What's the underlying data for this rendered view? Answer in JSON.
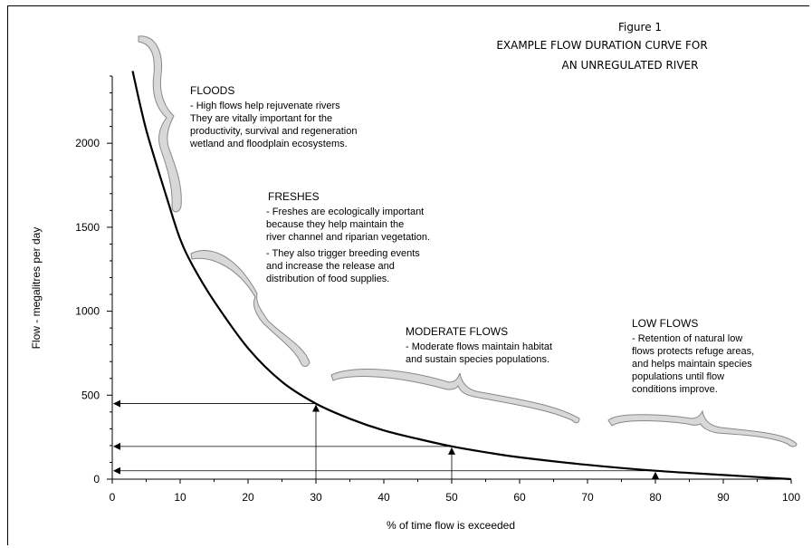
{
  "figure": {
    "number": "Figure 1",
    "title_lines": [
      "EXAMPLE FLOW DURATION CURVE FOR",
      "AN UNREGULATED RIVER"
    ]
  },
  "chart_data": {
    "type": "line",
    "xlabel": "% of time flow is exceeded",
    "ylabel": "Flow - megalitres per day",
    "xlim": [
      0,
      100
    ],
    "ylim": [
      0,
      2400
    ],
    "x_ticks": [
      0,
      10,
      20,
      30,
      40,
      50,
      60,
      70,
      80,
      90,
      100
    ],
    "y_ticks": [
      0,
      500,
      1000,
      1500,
      2000
    ],
    "grid": false,
    "series": [
      {
        "x": [
          3,
          5,
          8,
          10,
          12,
          15,
          20,
          25,
          30,
          35,
          40,
          45,
          50,
          55,
          60,
          70,
          80,
          90,
          100
        ],
        "values": [
          2430,
          2080,
          1680,
          1430,
          1260,
          1060,
          780,
          580,
          450,
          360,
          290,
          240,
          195,
          160,
          130,
          85,
          50,
          25,
          0
        ]
      }
    ],
    "reference_points": [
      {
        "x": 30,
        "y": 450
      },
      {
        "x": 50,
        "y": 195
      },
      {
        "x": 80,
        "y": 50
      }
    ],
    "annotations": [
      {
        "id": "floods",
        "heading": "FLOODS",
        "lines": [
          "- High flows help rejuvenate rivers",
          "  They are vitally important for the",
          "  productivity, survival and regeneration",
          "  wetland and floodplain ecosystems."
        ]
      },
      {
        "id": "freshes",
        "heading": "FRESHES",
        "lines": [
          "- Freshes are ecologically important",
          "  because they help maintain the",
          "  river channel and riparian vegetation.",
          "- They also trigger breeding events",
          "  and increase the release and",
          "  distribution of food supplies."
        ]
      },
      {
        "id": "moderate",
        "heading": "MODERATE FLOWS",
        "lines": [
          "- Moderate flows maintain habitat",
          "  and sustain species populations."
        ]
      },
      {
        "id": "low",
        "heading": "LOW FLOWS",
        "lines": [
          "- Retention of natural low",
          "  flows protects refuge areas,",
          "  and helps maintain species",
          "  populations until flow",
          "  conditions improve."
        ]
      }
    ],
    "brace_color": "#d8d8d8",
    "brace_stroke": "#888888",
    "line_color": "#000000"
  }
}
